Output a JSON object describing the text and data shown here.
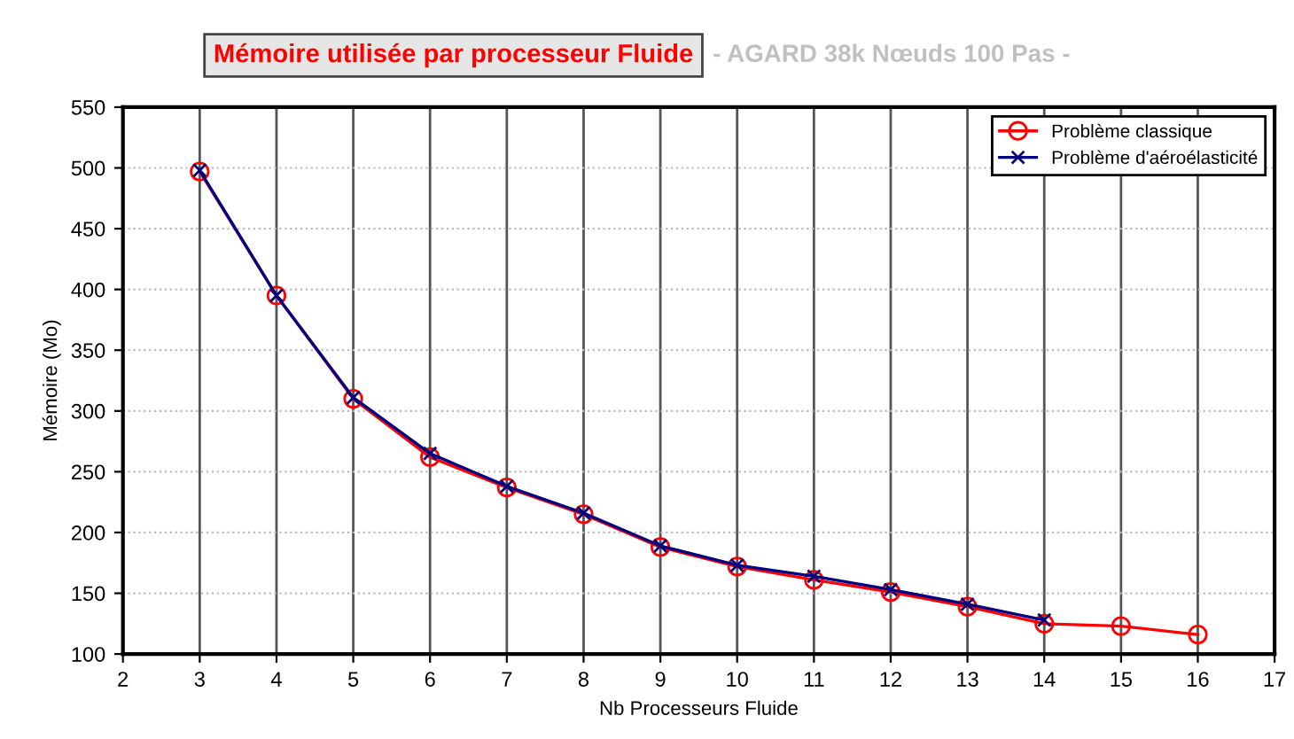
{
  "chart_data": {
    "type": "line",
    "title": "Mémoire utilisée par processeur Fluide",
    "subtitle": "- AGARD 38k Nœuds 100 Pas -",
    "xlabel": "Nb Processeurs Fluide",
    "ylabel": "Mémoire (Mo)",
    "x": [
      3,
      4,
      5,
      6,
      7,
      8,
      9,
      10,
      11,
      12,
      13,
      14,
      15,
      16
    ],
    "series": [
      {
        "name": "Problème classique",
        "color": "#ff0000",
        "marker": "circle",
        "values": [
          497,
          395,
          310,
          262,
          237,
          215,
          188,
          172,
          161,
          151,
          139,
          125,
          123,
          116
        ]
      },
      {
        "name": "Problème d'aéroélasticité",
        "color": "#000080",
        "marker": "cross",
        "values": [
          498,
          395,
          311,
          265,
          238,
          216,
          189,
          173,
          164,
          153,
          141,
          128,
          null,
          null
        ]
      }
    ],
    "xlim": [
      2,
      17
    ],
    "xticks": [
      2,
      3,
      4,
      5,
      6,
      7,
      8,
      9,
      10,
      11,
      12,
      13,
      14,
      15,
      16,
      17
    ],
    "ylim": [
      100,
      550
    ],
    "yticks": [
      100,
      150,
      200,
      250,
      300,
      350,
      400,
      450,
      500,
      550
    ],
    "grid": true,
    "legend": "top right"
  }
}
